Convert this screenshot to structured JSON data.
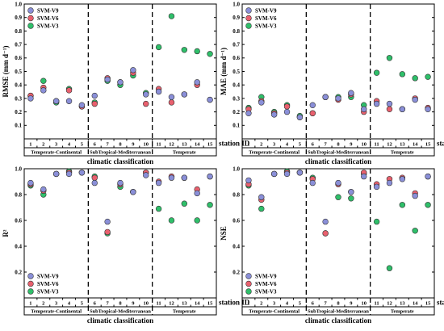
{
  "colors": {
    "SVM-V9": "#8a8fd8",
    "SVM-V6": "#e8606e",
    "SVM-V3": "#2fbf6a"
  },
  "station_axis_label": "station ID",
  "chart_data": [
    {
      "type": "scatter",
      "id": "rmse",
      "title": "",
      "ylabel": "RMSE (mm d⁻¹)",
      "xlabel": "climatic classification",
      "ylim": [
        0,
        1.0
      ],
      "yticks": [
        "",
        "0.1",
        "0.2",
        "0.3",
        "0.4",
        "0.5",
        "0.6",
        "0.7",
        "0.8",
        "0.9",
        "1.0"
      ],
      "ytick_values": [
        0,
        0.1,
        0.2,
        0.3,
        0.4,
        0.5,
        0.6,
        0.7,
        0.8,
        0.9,
        1.0
      ],
      "legend": "top-left",
      "x": [
        "1",
        "2",
        "3",
        "4",
        "5",
        "6",
        "7",
        "8",
        "9",
        "10",
        "11",
        "12",
        "13",
        "14",
        "15"
      ],
      "groups": [
        {
          "label": "Temperate-Continental",
          "from": 1,
          "to": 5
        },
        {
          "label": "SubTropical-Mediterranean",
          "from": 6,
          "to": 10
        },
        {
          "label": "Temperate",
          "from": 11,
          "to": 15
        }
      ],
      "series": [
        {
          "name": "SVM-V9",
          "values": [
            0.3,
            0.36,
            0.28,
            0.28,
            0.25,
            0.32,
            0.44,
            0.42,
            0.51,
            0.33,
            0.35,
            0.31,
            0.33,
            0.42,
            0.29
          ]
        },
        {
          "name": "SVM-V6",
          "values": [
            0.32,
            0.38,
            0.28,
            0.36,
            0.24,
            0.26,
            0.45,
            0.42,
            0.49,
            0.26,
            0.37,
            0.27,
            0.33,
            0.4,
            0.29
          ]
        },
        {
          "name": "SVM-V3",
          "values": [
            0.32,
            0.43,
            0.27,
            0.37,
            0.24,
            0.27,
            0.43,
            0.4,
            0.47,
            0.34,
            0.68,
            0.91,
            0.66,
            0.65,
            0.63
          ]
        }
      ]
    },
    {
      "type": "scatter",
      "id": "mae",
      "title": "",
      "ylabel": "MAE (mm d⁻¹)",
      "xlabel": "climatic classification",
      "ylim": [
        0,
        1.0
      ],
      "yticks": [
        "",
        "0.1",
        "0.2",
        "0.3",
        "0.4",
        "0.5",
        "0.6",
        "0.7",
        "0.8",
        "0.9",
        "1.0"
      ],
      "ytick_values": [
        0,
        0.1,
        0.2,
        0.3,
        0.4,
        0.5,
        0.6,
        0.7,
        0.8,
        0.9,
        1.0
      ],
      "legend": "top-left",
      "x": [
        "1",
        "2",
        "3",
        "4",
        "5",
        "6",
        "7",
        "8",
        "9",
        "10",
        "11",
        "12",
        "13",
        "14",
        "15"
      ],
      "groups": [
        {
          "label": "Temperate-Continental",
          "from": 1,
          "to": 5
        },
        {
          "label": "SubTropical-Mediterranean",
          "from": 6,
          "to": 10
        },
        {
          "label": "Temperate",
          "from": 11,
          "to": 15
        }
      ],
      "series": [
        {
          "name": "SVM-V9",
          "values": [
            0.19,
            0.27,
            0.18,
            0.2,
            0.16,
            0.25,
            0.31,
            0.3,
            0.34,
            0.22,
            0.26,
            0.26,
            0.22,
            0.29,
            0.22
          ]
        },
        {
          "name": "SVM-V6",
          "values": [
            0.22,
            0.28,
            0.19,
            0.24,
            0.16,
            0.19,
            0.31,
            0.29,
            0.33,
            0.2,
            0.28,
            0.22,
            0.22,
            0.3,
            0.23
          ]
        },
        {
          "name": "SVM-V3",
          "values": [
            0.23,
            0.31,
            0.2,
            0.25,
            0.17,
            0.19,
            0.31,
            0.31,
            0.31,
            0.25,
            0.49,
            0.6,
            0.48,
            0.45,
            0.46
          ]
        }
      ]
    },
    {
      "type": "scatter",
      "id": "r2",
      "title": "",
      "ylabel": "R²",
      "xlabel": "climatic classification",
      "ylim": [
        0,
        1.0
      ],
      "yticks": [
        "",
        "0.2",
        "0.4",
        "0.6",
        "0.8",
        "1.0"
      ],
      "ytick_values": [
        0,
        0.2,
        0.4,
        0.6,
        0.8,
        1.0
      ],
      "legend": "bottom-left",
      "x": [
        "1",
        "2",
        "3",
        "4",
        "5",
        "6",
        "7",
        "8",
        "9",
        "10",
        "11",
        "12",
        "13",
        "14",
        "15"
      ],
      "groups": [
        {
          "label": "Temperate-Continental",
          "from": 1,
          "to": 5
        },
        {
          "label": "SubTropical-Mediterranean",
          "from": 6,
          "to": 10
        },
        {
          "label": "Temperate",
          "from": 11,
          "to": 15
        }
      ],
      "series": [
        {
          "name": "SVM-V9",
          "values": [
            0.89,
            0.84,
            0.96,
            0.96,
            0.97,
            0.89,
            0.59,
            0.89,
            0.82,
            0.95,
            0.89,
            0.93,
            0.93,
            0.81,
            0.94
          ]
        },
        {
          "name": "SVM-V6",
          "values": [
            0.88,
            0.83,
            0.96,
            0.97,
            0.97,
            0.93,
            0.51,
            0.88,
            0.82,
            0.97,
            0.9,
            0.94,
            0.93,
            0.84,
            0.94
          ]
        },
        {
          "name": "SVM-V3",
          "values": [
            0.87,
            0.8,
            0.96,
            0.98,
            0.97,
            0.94,
            0.5,
            0.86,
            0.82,
            0.97,
            0.69,
            0.6,
            0.73,
            0.6,
            0.72
          ]
        }
      ]
    },
    {
      "type": "scatter",
      "id": "nse",
      "title": "",
      "ylabel": "NSE",
      "xlabel": "climatic classification",
      "ylim": [
        0,
        1.0
      ],
      "yticks": [
        "",
        "0.2",
        "0.4",
        "0.6",
        "0.8",
        "1.0"
      ],
      "ytick_values": [
        0,
        0.2,
        0.4,
        0.6,
        0.8,
        1.0
      ],
      "legend": "bottom-left",
      "x": [
        "1",
        "2",
        "3",
        "4",
        "5",
        "6",
        "7",
        "8",
        "9",
        "10",
        "11",
        "12",
        "13",
        "14",
        "15"
      ],
      "groups": [
        {
          "label": "Temperate-Continental",
          "from": 1,
          "to": 5
        },
        {
          "label": "SubTropical-Mediterranean",
          "from": 6,
          "to": 10
        },
        {
          "label": "Temperate",
          "from": 11,
          "to": 15
        }
      ],
      "series": [
        {
          "name": "SVM-V9",
          "values": [
            0.91,
            0.78,
            0.96,
            0.96,
            0.97,
            0.89,
            0.59,
            0.89,
            0.82,
            0.94,
            0.86,
            0.89,
            0.92,
            0.79,
            0.94
          ]
        },
        {
          "name": "SVM-V6",
          "values": [
            0.88,
            0.76,
            0.96,
            0.97,
            0.97,
            0.92,
            0.5,
            0.88,
            0.82,
            0.97,
            0.88,
            0.92,
            0.93,
            0.81,
            0.94
          ]
        },
        {
          "name": "SVM-V3",
          "values": [
            0.87,
            0.69,
            0.96,
            0.98,
            0.97,
            0.93,
            0.5,
            0.78,
            0.77,
            0.96,
            0.59,
            0.23,
            0.72,
            0.52,
            0.72
          ]
        }
      ]
    }
  ]
}
